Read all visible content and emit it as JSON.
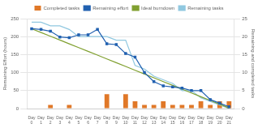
{
  "chart_data": {
    "type": "bar",
    "categories": [
      "Day\n0",
      "Day\n1",
      "Day\n2",
      "Day\n3",
      "Day\n4",
      "Day\n5",
      "Day\n6",
      "Day\n7",
      "Day\n8",
      "Day\n9",
      "Day\n10",
      "Day\n11",
      "Day\n12",
      "Day\n13",
      "Day\n14",
      "Day\n15",
      "Day\n16",
      "Day\n17",
      "Day\n18",
      "Day\n19",
      "Day\n20",
      "Day\n21"
    ],
    "series": [
      {
        "name": "Completed tasks",
        "type": "bar",
        "axis": "y2",
        "color": "#e07828",
        "values": [
          0,
          0,
          1,
          0,
          1,
          0,
          0,
          0,
          4,
          0,
          4,
          2,
          1,
          1,
          2,
          1,
          1,
          1,
          2,
          1,
          2,
          2
        ]
      },
      {
        "name": "Remaining effort",
        "type": "line",
        "color": "#2060b0",
        "marker": "square",
        "values": [
          222,
          220,
          215,
          199,
          197,
          205,
          205,
          220,
          180,
          178,
          153,
          143,
          100,
          75,
          63,
          60,
          57,
          50,
          50,
          25,
          15,
          5
        ]
      },
      {
        "name": "Ideal burndown",
        "type": "line",
        "color": "#80a030",
        "marker": "none",
        "values": [
          222,
          211.5,
          201,
          190.5,
          180,
          169.5,
          159,
          148.5,
          138,
          127.5,
          117,
          106.5,
          96,
          85.5,
          75,
          64.5,
          54,
          43.5,
          33,
          22.5,
          12,
          1.5
        ]
      },
      {
        "name": "Remaining tasks",
        "type": "line",
        "axis": "y2",
        "color": "#90c8e0",
        "marker": "none",
        "values": [
          24,
          24,
          23,
          23,
          22,
          20,
          20,
          20,
          20,
          19,
          19,
          12,
          11,
          9,
          8,
          7,
          5,
          5,
          3,
          2,
          1,
          0
        ]
      }
    ],
    "ylabel": "Remaining Effort (hours)",
    "y2label": "Remaining and completed tasks",
    "ylim": [
      0,
      250
    ],
    "yticks": [
      0,
      50,
      100,
      150,
      200,
      250
    ],
    "y2lim": [
      0,
      25
    ],
    "y2ticks": [
      0,
      5,
      10,
      15,
      20,
      25
    ],
    "grid": true,
    "legend": "top"
  }
}
